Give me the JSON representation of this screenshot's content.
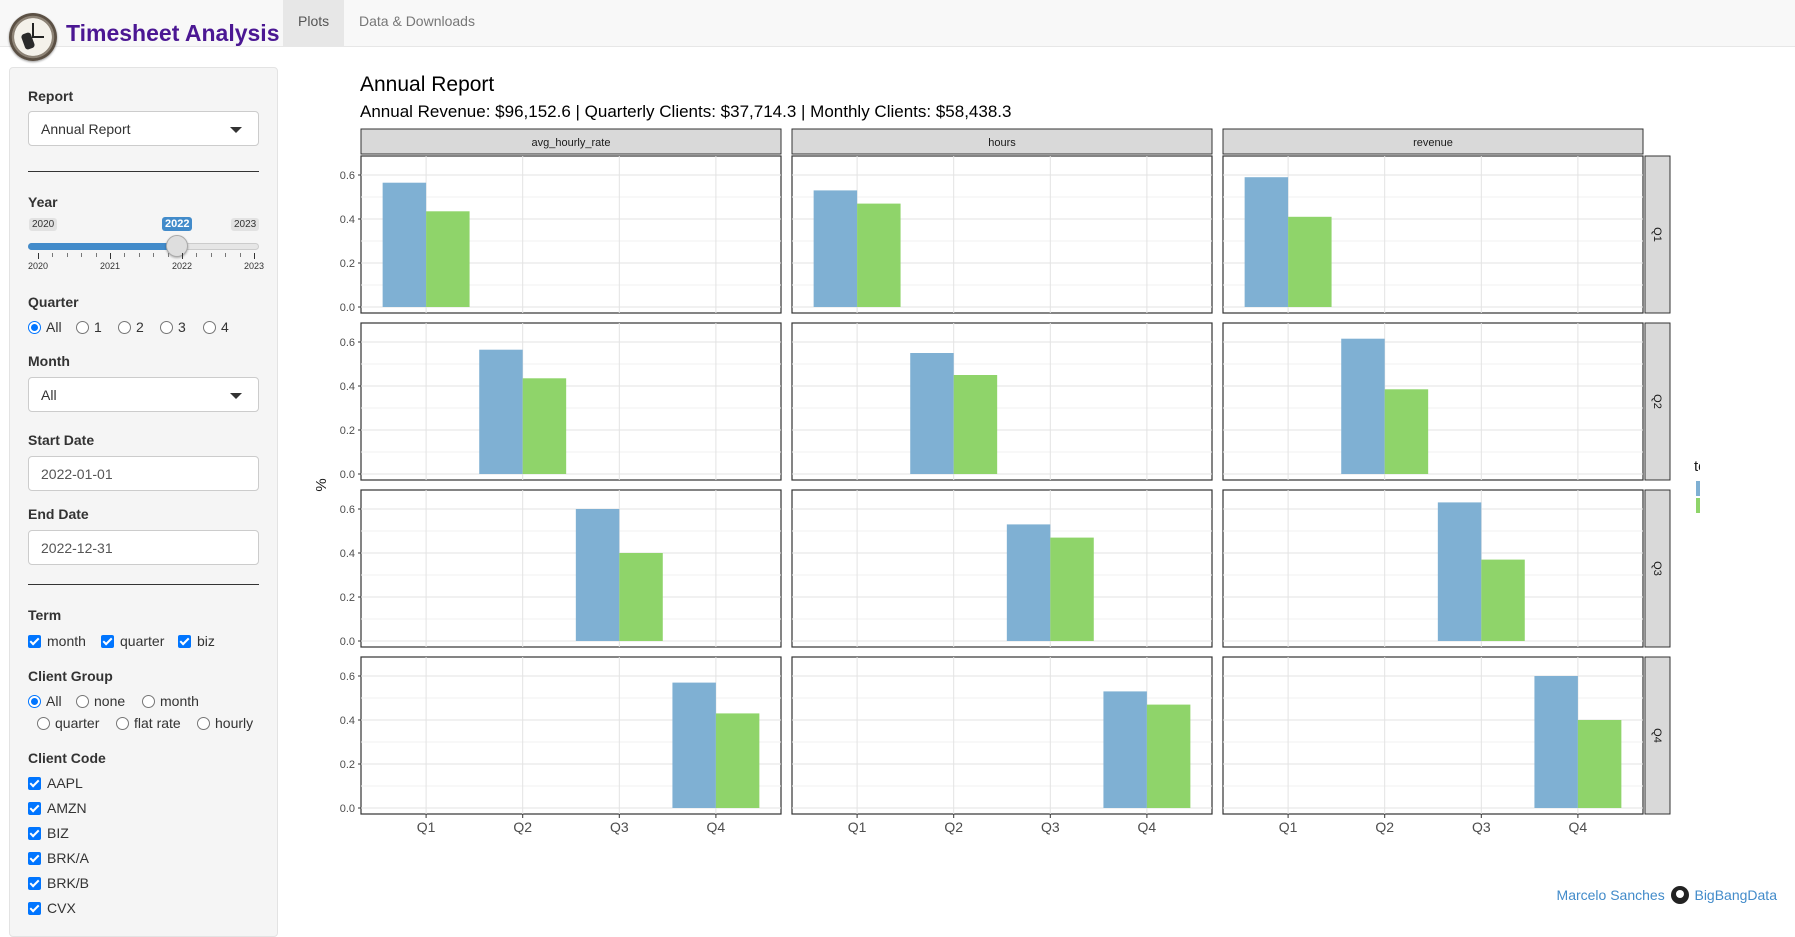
{
  "app": {
    "title": "Timesheet Analysis"
  },
  "nav": {
    "tabs": [
      {
        "label": "Plots",
        "active": true
      },
      {
        "label": "Data & Downloads",
        "active": false
      }
    ]
  },
  "sidebar": {
    "report": {
      "label": "Report",
      "value": "Annual Report"
    },
    "year": {
      "label": "Year",
      "min": "2020",
      "max": "2023",
      "value": "2022",
      "ticks": [
        "2020",
        "2021",
        "2022",
        "2023"
      ]
    },
    "quarter": {
      "label": "Quarter",
      "options": [
        "All",
        "1",
        "2",
        "3",
        "4"
      ],
      "selected": "All"
    },
    "month": {
      "label": "Month",
      "value": "All"
    },
    "start_date": {
      "label": "Start Date",
      "value": "2022-01-01"
    },
    "end_date": {
      "label": "End Date",
      "value": "2022-12-31"
    },
    "term": {
      "label": "Term",
      "options": [
        "month",
        "quarter",
        "biz"
      ]
    },
    "client_group": {
      "label": "Client Group",
      "options": [
        "All",
        "none",
        "month",
        "quarter",
        "flat rate",
        "hourly"
      ],
      "selected": "All"
    },
    "client_code": {
      "label": "Client Code",
      "options": [
        "AAPL",
        "AMZN",
        "BIZ",
        "BRK/A",
        "BRK/B",
        "CVX"
      ]
    }
  },
  "main": {
    "title": "Annual Report",
    "subtitle": "Annual Revenue: $96,152.6 | Quarterly Clients: $37,714.3 | Monthly Clients: $58,438.3"
  },
  "footer": {
    "author": "Marcelo Sanches",
    "org": "BigBangData"
  },
  "chart_data": {
    "type": "bar",
    "facet_cols": [
      "avg_hourly_rate",
      "hours",
      "revenue"
    ],
    "facet_rows": [
      "Q1",
      "Q2",
      "Q3",
      "Q4"
    ],
    "categories": [
      "Q1",
      "Q2",
      "Q3",
      "Q4"
    ],
    "ylabel": "%",
    "ylim": [
      0,
      0.65
    ],
    "yticks": [
      "0.0",
      "0.2",
      "0.4",
      "0.6"
    ],
    "legend": {
      "title": "term",
      "position": "right"
    },
    "series_colors": {
      "month": "#7fb0d3",
      "quarter": "#8fd46a"
    },
    "values": {
      "avg_hourly_rate": {
        "Q1": {
          "month": 0.565,
          "quarter": 0.435
        },
        "Q2": {
          "month": 0.565,
          "quarter": 0.435
        },
        "Q3": {
          "month": 0.6,
          "quarter": 0.4
        },
        "Q4": {
          "month": 0.57,
          "quarter": 0.43
        }
      },
      "hours": {
        "Q1": {
          "month": 0.53,
          "quarter": 0.47
        },
        "Q2": {
          "month": 0.55,
          "quarter": 0.45
        },
        "Q3": {
          "month": 0.53,
          "quarter": 0.47
        },
        "Q4": {
          "month": 0.53,
          "quarter": 0.47
        }
      },
      "revenue": {
        "Q1": {
          "month": 0.59,
          "quarter": 0.41
        },
        "Q2": {
          "month": 0.615,
          "quarter": 0.385
        },
        "Q3": {
          "month": 0.63,
          "quarter": 0.37
        },
        "Q4": {
          "month": 0.6,
          "quarter": 0.4
        }
      }
    }
  }
}
